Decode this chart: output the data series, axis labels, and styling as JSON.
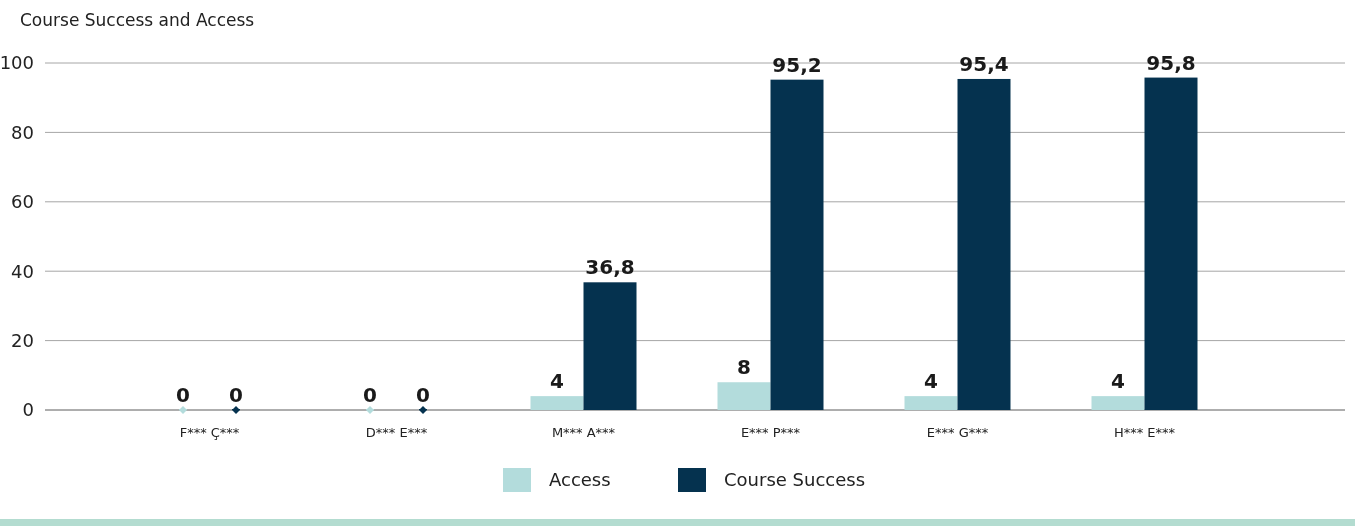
{
  "chart_data": {
    "type": "bar",
    "title": "Course Success and Access",
    "categories": [
      "F*** Ç***",
      "D*** E***",
      "M*** A***",
      "E*** P***",
      "E*** G***",
      "H*** E***"
    ],
    "series": [
      {
        "name": "Access",
        "color": "#b3dcdc",
        "values": [
          0,
          0,
          4,
          8,
          4,
          4
        ],
        "value_labels": [
          "0",
          "0",
          "4",
          "8",
          "4",
          "4"
        ]
      },
      {
        "name": "Course Success",
        "color": "#05324f",
        "values": [
          0,
          0,
          36.8,
          95.2,
          95.4,
          95.8
        ],
        "value_labels": [
          "0",
          "0",
          "36,8",
          "95,2",
          "95,4",
          "95,8"
        ]
      }
    ],
    "ylim": [
      0,
      100
    ],
    "yticks": [
      0,
      20,
      40,
      60,
      80,
      100
    ],
    "grid": "y",
    "legend": "bottom"
  }
}
